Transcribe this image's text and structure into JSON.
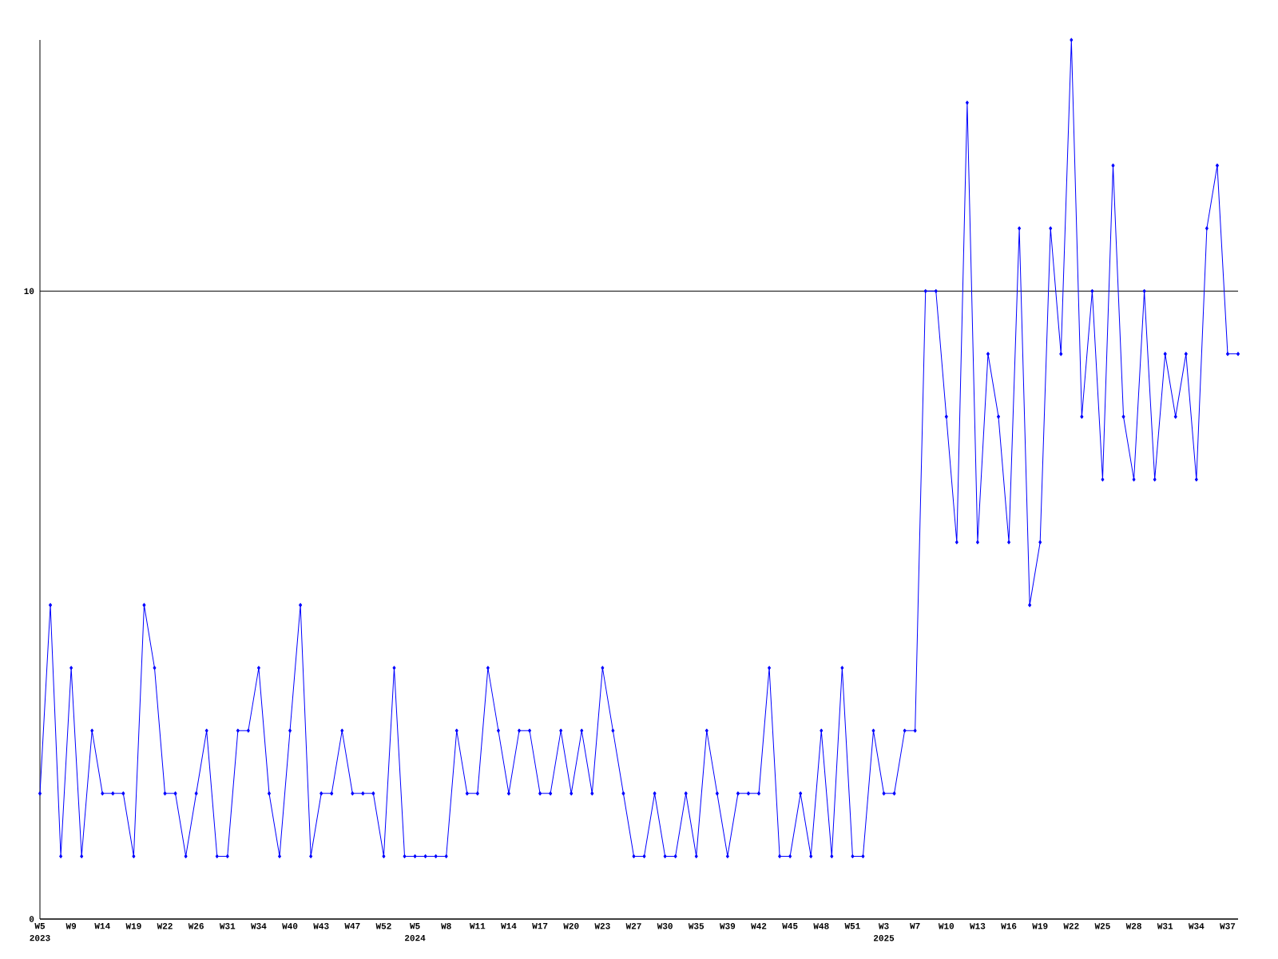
{
  "chart_data": {
    "type": "line",
    "categories": [
      "W5 2023",
      null,
      null,
      "W9",
      null,
      null,
      "W14",
      null,
      null,
      "W19",
      null,
      null,
      "W22",
      null,
      null,
      "W26",
      null,
      null,
      "W31",
      null,
      null,
      "W34",
      null,
      null,
      "W40",
      null,
      null,
      "W43",
      null,
      null,
      "W47",
      null,
      null,
      "W52",
      null,
      null,
      "W5 2024",
      null,
      null,
      "W8",
      null,
      null,
      "W11",
      null,
      null,
      "W14",
      null,
      null,
      "W17",
      null,
      null,
      "W20",
      null,
      null,
      "W23",
      null,
      null,
      "W27",
      null,
      null,
      "W30",
      null,
      null,
      "W35",
      null,
      null,
      "W39",
      null,
      null,
      "W42",
      null,
      null,
      "W45",
      null,
      null,
      "W48",
      null,
      null,
      "W51",
      null,
      null,
      "W3 2025",
      null,
      null,
      "W7",
      null,
      null,
      "W10",
      null,
      null,
      "W13",
      null,
      null,
      "W16",
      null,
      null,
      "W19",
      null,
      null,
      "W22",
      null,
      null,
      "W25",
      null,
      null,
      "W28",
      null,
      null,
      "W31",
      null,
      null,
      "W34",
      null,
      null,
      "W37",
      null
    ],
    "values": [
      2,
      5,
      1,
      4,
      1,
      3,
      2,
      2,
      2,
      1,
      5,
      4,
      2,
      2,
      1,
      2,
      3,
      1,
      1,
      3,
      3,
      4,
      2,
      1,
      3,
      5,
      1,
      2,
      2,
      3,
      2,
      2,
      2,
      1,
      4,
      1,
      1,
      1,
      1,
      1,
      3,
      2,
      2,
      4,
      3,
      2,
      3,
      3,
      2,
      2,
      3,
      2,
      3,
      2,
      4,
      3,
      2,
      1,
      1,
      2,
      1,
      1,
      2,
      1,
      3,
      2,
      1,
      2,
      2,
      2,
      4,
      1,
      1,
      2,
      1,
      3,
      1,
      4,
      1,
      1,
      3,
      2,
      2,
      3,
      3,
      10,
      10,
      8,
      6,
      13,
      6,
      9,
      8,
      6,
      11,
      5,
      6,
      11,
      9,
      14,
      8,
      10,
      7,
      12,
      8,
      7,
      10,
      7,
      9,
      8,
      9,
      7,
      11,
      12,
      9,
      9
    ],
    "color": "#0000ff",
    "ylim": [
      0,
      14
    ],
    "yticks": [
      0,
      10
    ],
    "grid": "y",
    "marker": "diamond"
  }
}
